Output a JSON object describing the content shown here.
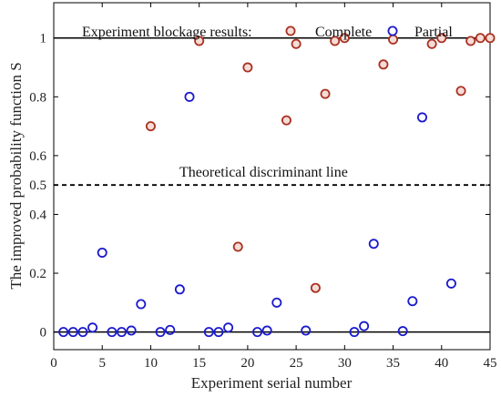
{
  "chart_data": {
    "type": "scatter",
    "xlabel": "Experiment serial number",
    "ylabel": "The improved probability function S",
    "xlim": [
      0,
      45
    ],
    "ylim": [
      -0.06,
      1.12
    ],
    "x_ticks": [
      0,
      5,
      10,
      15,
      20,
      25,
      30,
      35,
      40,
      45
    ],
    "y_ticks": [
      0,
      0.2,
      0.4,
      0.5,
      0.6,
      0.8,
      1
    ],
    "y_tick_labels": [
      "0",
      "0.2",
      "0.4",
      "0.5",
      "0.6",
      "0.8",
      "1"
    ],
    "legend": {
      "title": "Experiment blockage results:",
      "placement": "top",
      "entries": [
        "Complete",
        "Partial"
      ]
    },
    "reference_lines": [
      {
        "y": 1,
        "style": "solid"
      },
      {
        "y": 0,
        "style": "solid"
      },
      {
        "y": 0.5,
        "style": "dashed",
        "label": "Theoretical discriminant line"
      }
    ],
    "series": [
      {
        "name": "Complete",
        "color": "#a83222",
        "fill": "#f6dcd7",
        "points": [
          [
            10,
            0.7
          ],
          [
            15,
            0.99
          ],
          [
            19,
            0.29
          ],
          [
            20,
            0.9
          ],
          [
            24,
            0.72
          ],
          [
            25,
            0.98
          ],
          [
            27,
            0.15
          ],
          [
            28,
            0.81
          ],
          [
            29,
            0.99
          ],
          [
            30,
            1.0
          ],
          [
            34,
            0.91
          ],
          [
            35,
            0.995
          ],
          [
            39,
            0.98
          ],
          [
            40,
            1.0
          ],
          [
            42,
            0.82
          ],
          [
            43,
            0.99
          ],
          [
            44,
            1.0
          ],
          [
            45,
            1.0
          ]
        ]
      },
      {
        "name": "Partial",
        "color": "#1a1acc",
        "fill": "none",
        "points": [
          [
            1,
            0.0
          ],
          [
            2,
            0.0
          ],
          [
            3,
            0.0
          ],
          [
            4,
            0.015
          ],
          [
            5,
            0.27
          ],
          [
            6,
            0.0
          ],
          [
            7,
            0.0
          ],
          [
            8,
            0.005
          ],
          [
            9,
            0.095
          ],
          [
            11,
            0.0
          ],
          [
            12,
            0.007
          ],
          [
            13,
            0.145
          ],
          [
            14,
            0.8
          ],
          [
            16,
            0.0
          ],
          [
            17,
            0.0
          ],
          [
            18,
            0.015
          ],
          [
            21,
            0.0
          ],
          [
            22,
            0.005
          ],
          [
            23,
            0.1
          ],
          [
            26,
            0.005
          ],
          [
            31,
            0.0
          ],
          [
            32,
            0.02
          ],
          [
            33,
            0.3
          ],
          [
            36,
            0.003
          ],
          [
            37,
            0.105
          ],
          [
            38,
            0.73
          ],
          [
            41,
            0.165
          ]
        ]
      }
    ]
  }
}
